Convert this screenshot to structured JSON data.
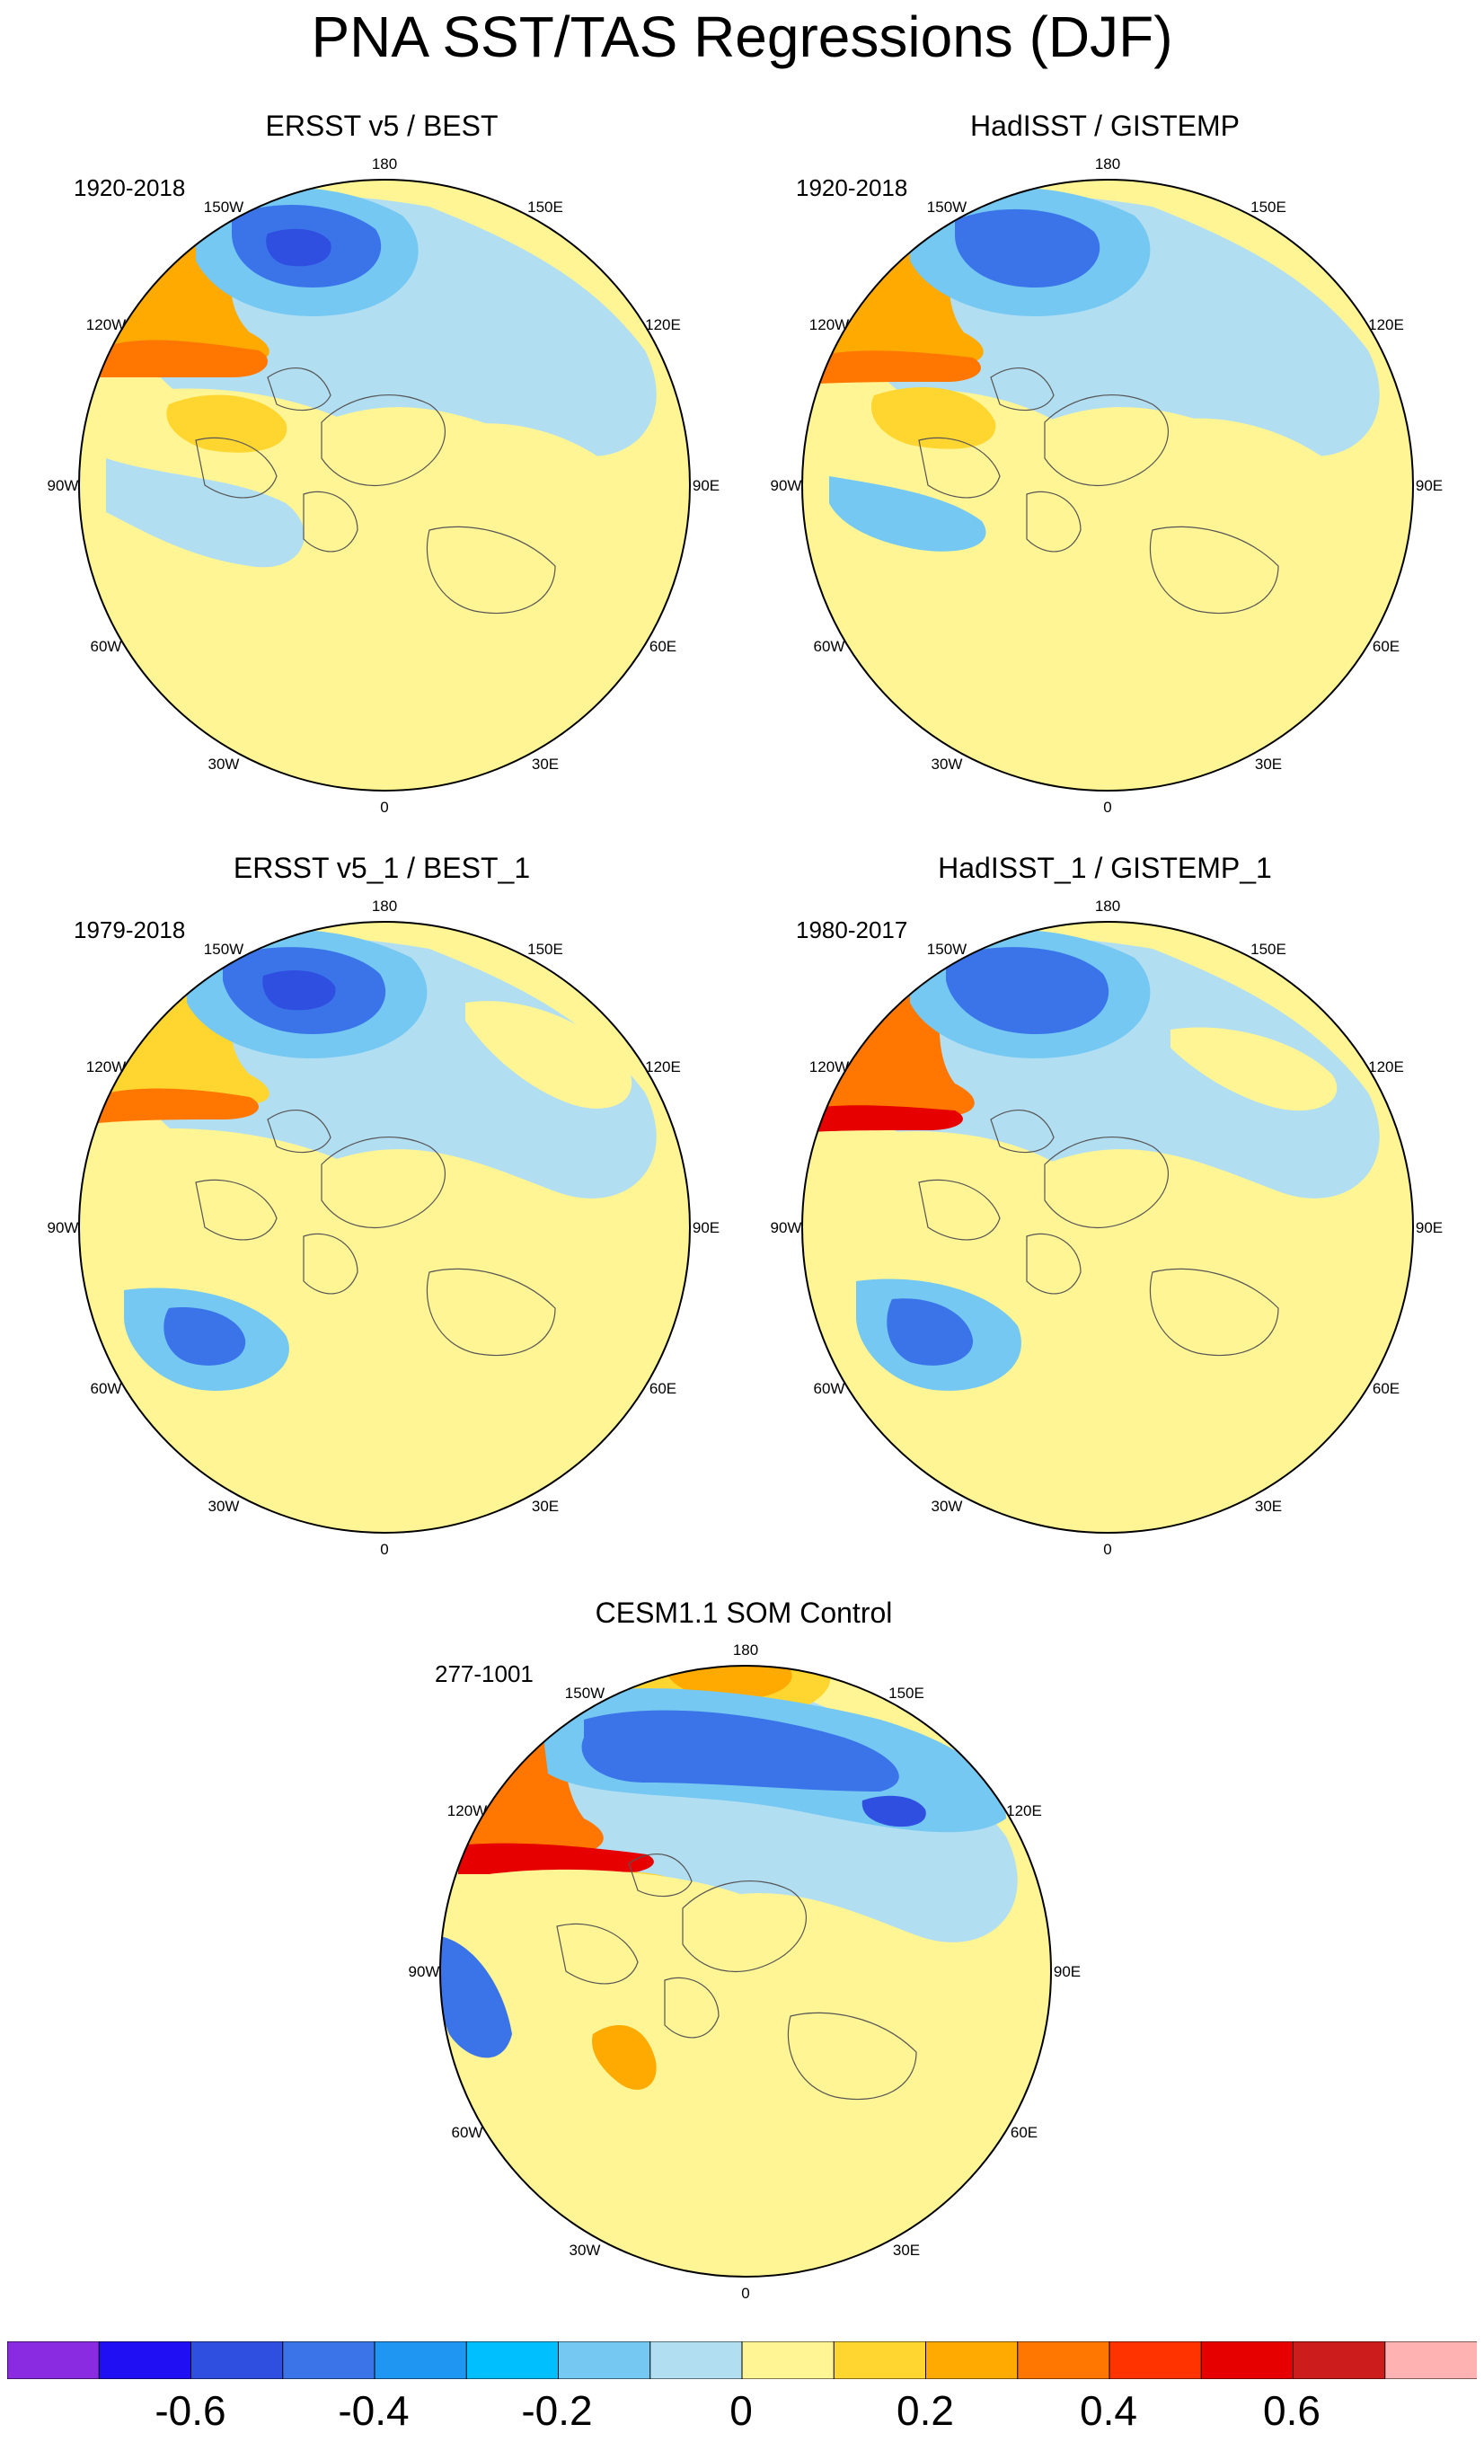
{
  "title": "PNA SST/TAS Regressions (DJF)",
  "panels": [
    {
      "id": "p1",
      "title": "ERSST v5 / BEST",
      "period": "1920-2018"
    },
    {
      "id": "p2",
      "title": "HadISST / GISTEMP",
      "period": "1920-2018"
    },
    {
      "id": "p3",
      "title": "ERSST v5_1 / BEST_1",
      "period": "1979-2018"
    },
    {
      "id": "p4",
      "title": "HadISST_1 / GISTEMP_1",
      "period": "1980-2017"
    },
    {
      "id": "p5",
      "title": "CESM1.1 SOM Control",
      "period": "277-1001"
    }
  ],
  "longitude_labels": [
    "180",
    "150E",
    "120E",
    "90E",
    "60E",
    "30E",
    "0",
    "30W",
    "60W",
    "90W",
    "120W",
    "150W"
  ],
  "colorbar": {
    "colors": [
      "#8A2BE2",
      "#1F0FF2",
      "#2F4FE0",
      "#3A74E8",
      "#2096F3",
      "#00BFFF",
      "#74C8F1",
      "#B2DEF2",
      "#FFF594",
      "#FFD530",
      "#FFAA00",
      "#FF7700",
      "#FF3300",
      "#E60000",
      "#CC1C1C",
      "#FFB2B2"
    ],
    "tick_labels": [
      "-0.6",
      "-0.4",
      "-0.2",
      "0",
      "0.2",
      "0.4",
      "0.6"
    ]
  },
  "legend_colors": {
    "strong_negative": "#2F4FE0",
    "negative": "#3A74E8",
    "moderate_negative": "#74C8F1",
    "weak_negative": "#B2DEF2",
    "weak_positive": "#FFF594",
    "moderate_positive": "#FFD530",
    "positive": "#FFAA00",
    "strong_positive": "#FF7700",
    "very_strong_positive": "#E60000",
    "land_boundary": "#ffffff",
    "coastline": "#555555"
  }
}
